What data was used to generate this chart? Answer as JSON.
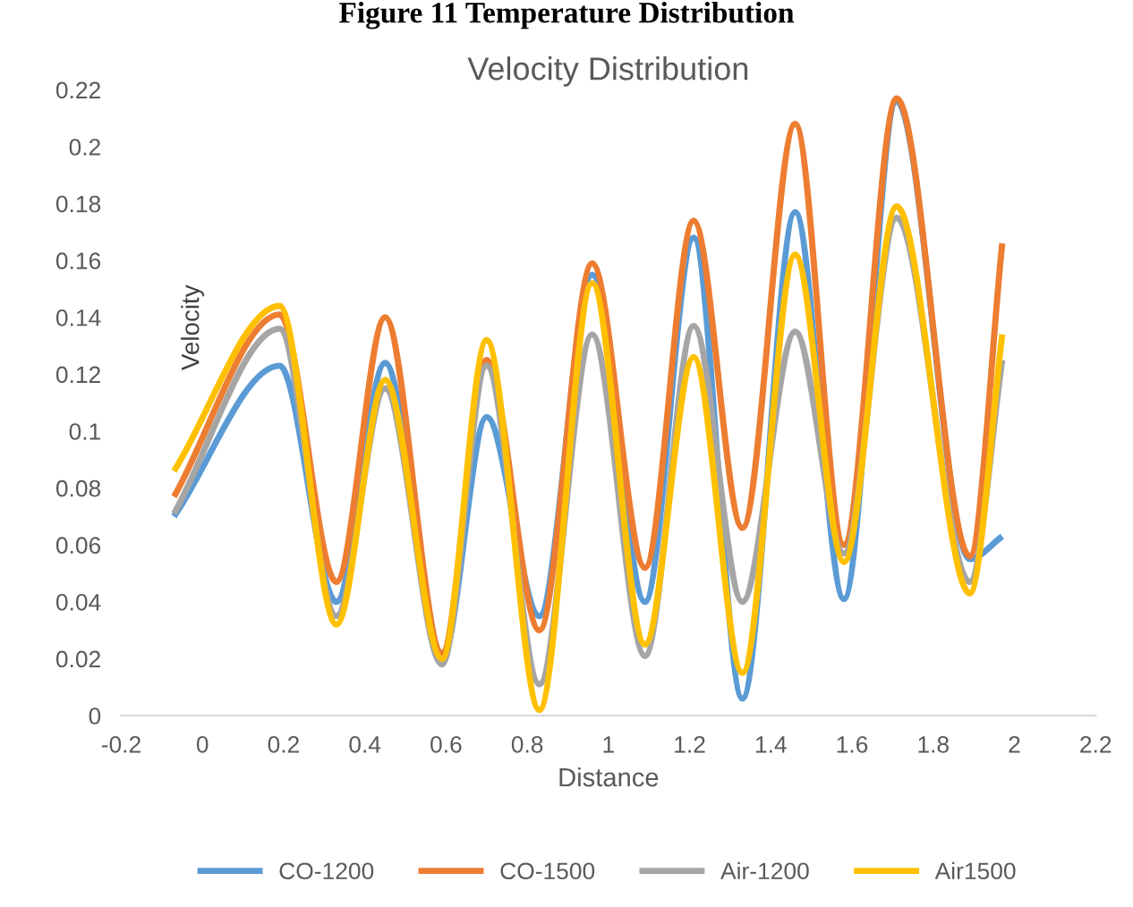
{
  "chart_data": {
    "type": "line",
    "title": "Velocity Distribution",
    "xlabel": "Distance",
    "ylabel": "Velocity",
    "annotations": [
      "Figure 11 Temperature Distribution"
    ],
    "x": [
      -0.07,
      0.19,
      0.33,
      0.45,
      0.59,
      0.7,
      0.83,
      0.96,
      1.09,
      1.21,
      1.33,
      1.46,
      1.58,
      1.71,
      1.89,
      1.97
    ],
    "series": [
      {
        "name": "CO-1200",
        "color": "#5b9bd5",
        "values": [
          0.07,
          0.123,
          0.04,
          0.124,
          0.02,
          0.105,
          0.035,
          0.155,
          0.04,
          0.168,
          0.006,
          0.177,
          0.041,
          0.216,
          0.055,
          0.063
        ]
      },
      {
        "name": "CO-1500",
        "color": "#ed7d31",
        "values": [
          0.077,
          0.141,
          0.047,
          0.14,
          0.022,
          0.125,
          0.03,
          0.159,
          0.052,
          0.174,
          0.066,
          0.208,
          0.06,
          0.217,
          0.056,
          0.166
        ]
      },
      {
        "name": "Air-1200",
        "color": "#a5a5a5",
        "values": [
          0.071,
          0.136,
          0.035,
          0.115,
          0.018,
          0.123,
          0.011,
          0.134,
          0.021,
          0.137,
          0.04,
          0.135,
          0.057,
          0.175,
          0.047,
          0.125
        ]
      },
      {
        "name": "Air1500",
        "color": "#ffc000",
        "values": [
          0.086,
          0.144,
          0.032,
          0.118,
          0.02,
          0.132,
          0.002,
          0.152,
          0.025,
          0.126,
          0.015,
          0.162,
          0.054,
          0.179,
          0.043,
          0.134
        ]
      }
    ],
    "xlim": [
      -0.2,
      2.2
    ],
    "xticks": [
      -0.2,
      0,
      0.2,
      0.4,
      0.6,
      0.8,
      1,
      1.2,
      1.4,
      1.6,
      1.8,
      2,
      2.2
    ],
    "ylim": [
      0,
      0.22
    ],
    "yticks": [
      0,
      0.02,
      0.04,
      0.06,
      0.08,
      0.1,
      0.12,
      0.14,
      0.16,
      0.18,
      0.2,
      0.22
    ],
    "grid": false,
    "legend": "bottom",
    "marker": "none",
    "line_style": "solid"
  }
}
